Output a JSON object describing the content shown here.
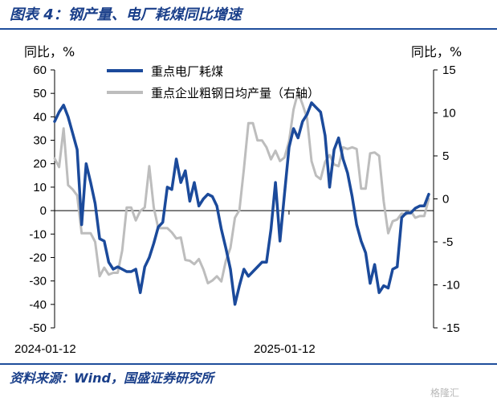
{
  "figure_title": "图表 4：钢产量、电厂耗煤同比增速",
  "footer": {
    "source": "资料来源：Wind，国盛证券研究所",
    "watermark": "格隆汇"
  },
  "chart_data": {
    "type": "line",
    "unit_left": "同比，%",
    "unit_right": "同比，%",
    "y_left": {
      "min": -50,
      "max": 60,
      "ticks": [
        60,
        50,
        40,
        30,
        20,
        10,
        0,
        -10,
        -20,
        -30,
        -40,
        -50
      ]
    },
    "y_right": {
      "min": -15,
      "max": 15,
      "ticks": [
        15,
        10,
        5,
        0,
        -5,
        -10,
        -15
      ]
    },
    "x_tick_labels": [
      "2024-01-12",
      "2025-01-12"
    ],
    "x_tick_index": [
      0,
      52
    ],
    "x_count": 84,
    "legend_position": "top-center",
    "grid": false,
    "series": [
      {
        "name": "重点电厂耗煤",
        "axis": "left",
        "color": "#1b4a9b",
        "values": [
          38,
          42,
          45,
          40,
          33,
          26,
          -6,
          20,
          12,
          3,
          -12,
          -13,
          -22,
          -25,
          -24,
          -25,
          -26,
          -26,
          -25,
          -35,
          -24,
          -20,
          -14,
          -7,
          -5,
          10,
          9,
          22,
          12,
          17,
          4,
          12,
          2,
          5,
          7,
          6,
          2,
          -8,
          -16,
          -25,
          -40,
          -32,
          -25,
          -28,
          -26,
          -24,
          -22,
          -22,
          -8,
          12,
          -13,
          7,
          27,
          35,
          31,
          38,
          41,
          46,
          44,
          42,
          32,
          10,
          26,
          31,
          22,
          16,
          6,
          -6,
          -13,
          -18,
          -31,
          -23,
          -35,
          -32,
          -33,
          -25,
          -24,
          -3,
          -1,
          -1,
          1,
          2,
          2,
          7
        ]
      },
      {
        "name": "重点企业粗钢日均产量（右轴）",
        "axis": "right",
        "color": "#bdbdbd",
        "values": [
          4.7,
          3.7,
          8.2,
          1.6,
          1.1,
          0.4,
          -4.0,
          -4.0,
          -4.0,
          -5.0,
          -9.0,
          -8.0,
          -8.8,
          -8.6,
          -8.6,
          -6.0,
          -1.0,
          -1.0,
          -2.5,
          -1.4,
          -1.0,
          3.8,
          -1.0,
          -3.4,
          -3.4,
          -3.4,
          -3.9,
          -4.6,
          -4.5,
          -7.1,
          -7.2,
          -7.6,
          -7.0,
          -8.2,
          -9.8,
          -9.5,
          -9.0,
          -9.6,
          -7.2,
          -5.7,
          -2.2,
          -1.3,
          3.5,
          8.8,
          8.8,
          6.8,
          6.8,
          6.0,
          4.6,
          5.6,
          4.4,
          4.8,
          6.7,
          10.4,
          12.4,
          11.0,
          9.4,
          4.4,
          2.7,
          2.3,
          4.3,
          5.1,
          4.0,
          3.8,
          6.0,
          5.8,
          6.0,
          5.8,
          1.2,
          1.2,
          5.3,
          5.4,
          5.0,
          -0.3,
          -4.0,
          -2.6,
          -2.4,
          -1.7,
          -1.8,
          -1.4,
          -2.2,
          -2.0,
          -2.0,
          0.0
        ]
      }
    ]
  }
}
